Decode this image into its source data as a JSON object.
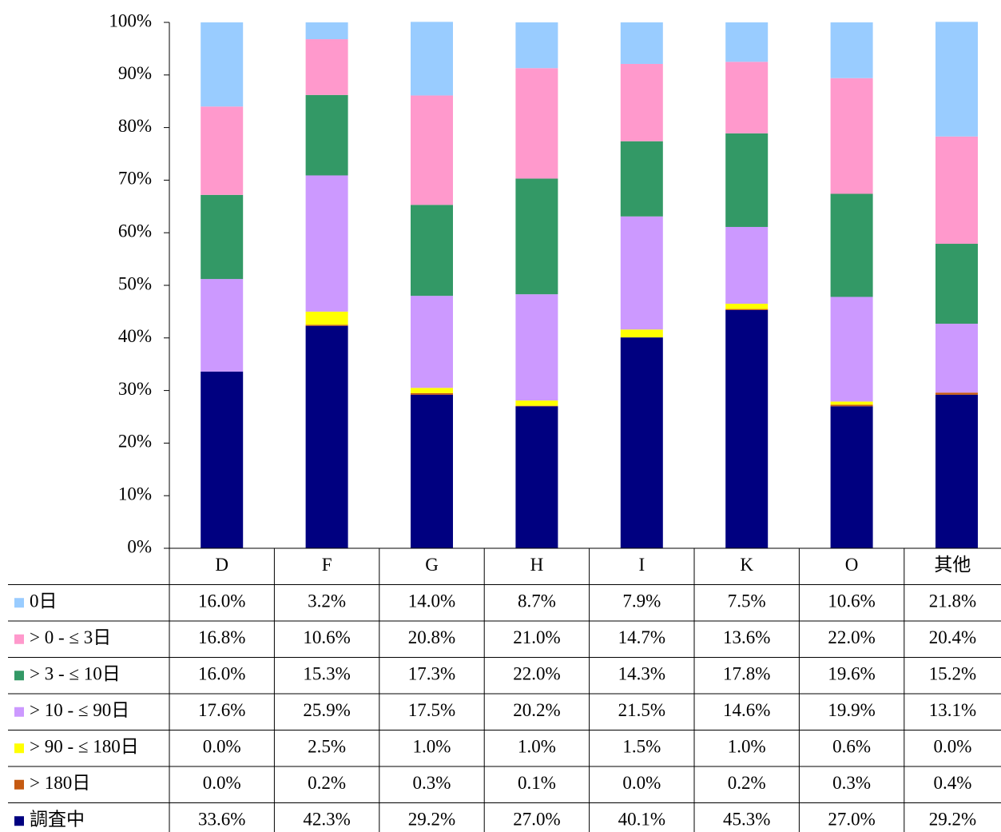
{
  "chart_data": {
    "type": "stacked_bar",
    "categories": [
      "D",
      "F",
      "G",
      "H",
      "I",
      "K",
      "O",
      "其他"
    ],
    "ylim": [
      0,
      100
    ],
    "yticks": [
      {
        "value": 0,
        "label": "0%"
      },
      {
        "value": 10,
        "label": "10%"
      },
      {
        "value": 20,
        "label": "20%"
      },
      {
        "value": 30,
        "label": "30%"
      },
      {
        "value": 40,
        "label": "40%"
      },
      {
        "value": 50,
        "label": "50%"
      },
      {
        "value": 60,
        "label": "60%"
      },
      {
        "value": 70,
        "label": "70%"
      },
      {
        "value": 80,
        "label": "80%"
      },
      {
        "value": 90,
        "label": "90%"
      },
      {
        "value": 100,
        "label": "100%"
      }
    ],
    "series": [
      {
        "name": "0日",
        "color": "#99ccff",
        "values": [
          16.0,
          3.2,
          14.0,
          8.7,
          7.9,
          7.5,
          10.6,
          21.8
        ],
        "value_labels": [
          "16.0%",
          "3.2%",
          "14.0%",
          "8.7%",
          "7.9%",
          "7.5%",
          "10.6%",
          "21.8%"
        ]
      },
      {
        "name": "> 0 - ≤ 3日",
        "color": "#ff99cc",
        "values": [
          16.8,
          10.6,
          20.8,
          21.0,
          14.7,
          13.6,
          22.0,
          20.4
        ],
        "value_labels": [
          "16.8%",
          "10.6%",
          "20.8%",
          "21.0%",
          "14.7%",
          "13.6%",
          "22.0%",
          "20.4%"
        ]
      },
      {
        "name": "> 3 - ≤ 10日",
        "color": "#339966",
        "values": [
          16.0,
          15.3,
          17.3,
          22.0,
          14.3,
          17.8,
          19.6,
          15.2
        ],
        "value_labels": [
          "16.0%",
          "15.3%",
          "17.3%",
          "22.0%",
          "14.3%",
          "17.8%",
          "19.6%",
          "15.2%"
        ]
      },
      {
        "name": "> 10 - ≤ 90日",
        "color": "#cc99ff",
        "values": [
          17.6,
          25.9,
          17.5,
          20.2,
          21.5,
          14.6,
          19.9,
          13.1
        ],
        "value_labels": [
          "17.6%",
          "25.9%",
          "17.5%",
          "20.2%",
          "21.5%",
          "14.6%",
          "19.9%",
          "13.1%"
        ]
      },
      {
        "name": "> 90 - ≤ 180日",
        "color": "#ffff00",
        "values": [
          0.0,
          2.5,
          1.0,
          1.0,
          1.5,
          1.0,
          0.6,
          0.0
        ],
        "value_labels": [
          "0.0%",
          "2.5%",
          "1.0%",
          "1.0%",
          "1.5%",
          "1.0%",
          "0.6%",
          "0.0%"
        ]
      },
      {
        "name": "> 180日",
        "color": "#c55a11",
        "values": [
          0.0,
          0.2,
          0.3,
          0.1,
          0.0,
          0.2,
          0.3,
          0.4
        ],
        "value_labels": [
          "0.0%",
          "0.2%",
          "0.3%",
          "0.1%",
          "0.0%",
          "0.2%",
          "0.3%",
          "0.4%"
        ]
      },
      {
        "name": "調査中",
        "color": "#000080",
        "values": [
          33.6,
          42.3,
          29.2,
          27.0,
          40.1,
          45.3,
          27.0,
          29.2
        ],
        "value_labels": [
          "33.6%",
          "42.3%",
          "29.2%",
          "27.0%",
          "40.1%",
          "45.3%",
          "27.0%",
          "29.2%"
        ]
      }
    ]
  }
}
